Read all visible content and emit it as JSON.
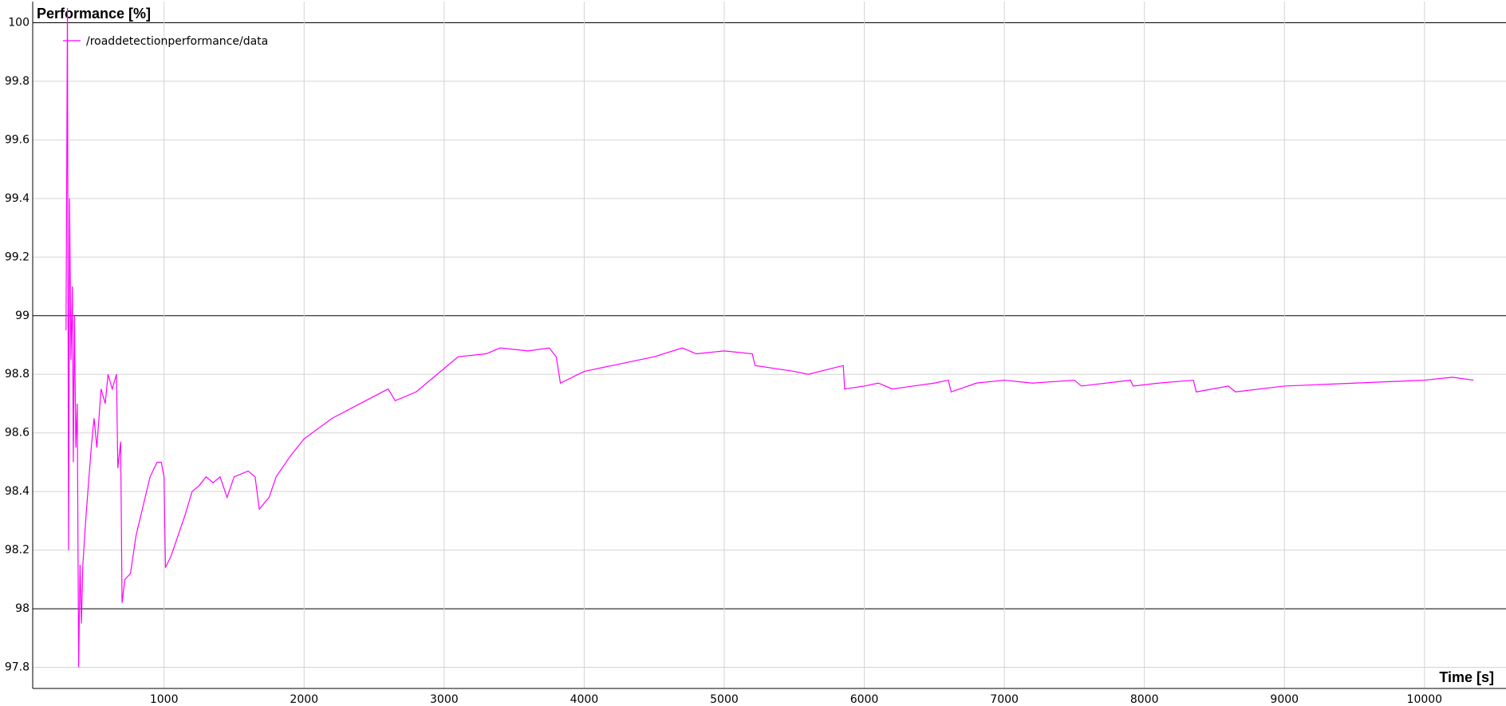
{
  "chart_data": {
    "type": "line",
    "y_label": "Performance [%]",
    "x_label": "Time [s]",
    "xlim": [
      62,
      10582
    ],
    "ylim": [
      97.728,
      100.072
    ],
    "xticks": [
      1000,
      2000,
      3000,
      4000,
      5000,
      6000,
      7000,
      8000,
      9000,
      10000
    ],
    "yticks": [
      97.8,
      98,
      98.2,
      98.4,
      98.6,
      98.8,
      99,
      99.2,
      99.4,
      99.6,
      99.8,
      100
    ],
    "grid": true,
    "legend": "top-left",
    "series": [
      {
        "name": "/roaddetectionperformance/data",
        "color": "#ff00ff",
        "x": [
          300,
          310,
          318,
          325,
          335,
          345,
          352,
          360,
          370,
          380,
          390,
          400,
          410,
          420,
          440,
          480,
          500,
          520,
          550,
          580,
          600,
          630,
          660,
          670,
          690,
          700,
          720,
          760,
          800,
          850,
          900,
          950,
          980,
          1000,
          1010,
          1050,
          1100,
          1150,
          1200,
          1250,
          1300,
          1350,
          1400,
          1450,
          1500,
          1600,
          1650,
          1680,
          1750,
          1800,
          1900,
          2000,
          2200,
          2400,
          2600,
          2650,
          2800,
          3000,
          3100,
          3300,
          3400,
          3600,
          3750,
          3800,
          3830,
          4000,
          4200,
          4500,
          4700,
          4800,
          5000,
          5200,
          5220,
          5500,
          5600,
          5850,
          5860,
          6000,
          6100,
          6200,
          6500,
          6600,
          6620,
          6800,
          7000,
          7200,
          7500,
          7550,
          7900,
          7920,
          8100,
          8350,
          8370,
          8600,
          8650,
          9000,
          9500,
          10000,
          10200,
          10350
        ],
        "values": [
          98.95,
          100.05,
          98.2,
          99.4,
          98.85,
          99.1,
          98.5,
          99.0,
          98.55,
          98.7,
          97.8,
          98.15,
          97.95,
          98.15,
          98.3,
          98.55,
          98.65,
          98.55,
          98.75,
          98.7,
          98.8,
          98.75,
          98.8,
          98.48,
          98.57,
          98.02,
          98.1,
          98.12,
          98.25,
          98.35,
          98.45,
          98.5,
          98.5,
          98.45,
          98.14,
          98.18,
          98.25,
          98.32,
          98.4,
          98.42,
          98.45,
          98.43,
          98.45,
          98.38,
          98.45,
          98.47,
          98.45,
          98.34,
          98.38,
          98.45,
          98.52,
          98.58,
          98.65,
          98.7,
          98.75,
          98.71,
          98.74,
          98.82,
          98.86,
          98.87,
          98.89,
          98.88,
          98.89,
          98.86,
          98.77,
          98.81,
          98.83,
          98.86,
          98.89,
          98.87,
          98.88,
          98.87,
          98.83,
          98.81,
          98.8,
          98.83,
          98.75,
          98.76,
          98.77,
          98.75,
          98.77,
          98.78,
          98.74,
          98.77,
          98.78,
          98.77,
          98.78,
          98.76,
          98.78,
          98.76,
          98.77,
          98.78,
          98.74,
          98.76,
          98.74,
          98.76,
          98.77,
          98.78,
          98.79,
          98.78
        ]
      }
    ]
  }
}
